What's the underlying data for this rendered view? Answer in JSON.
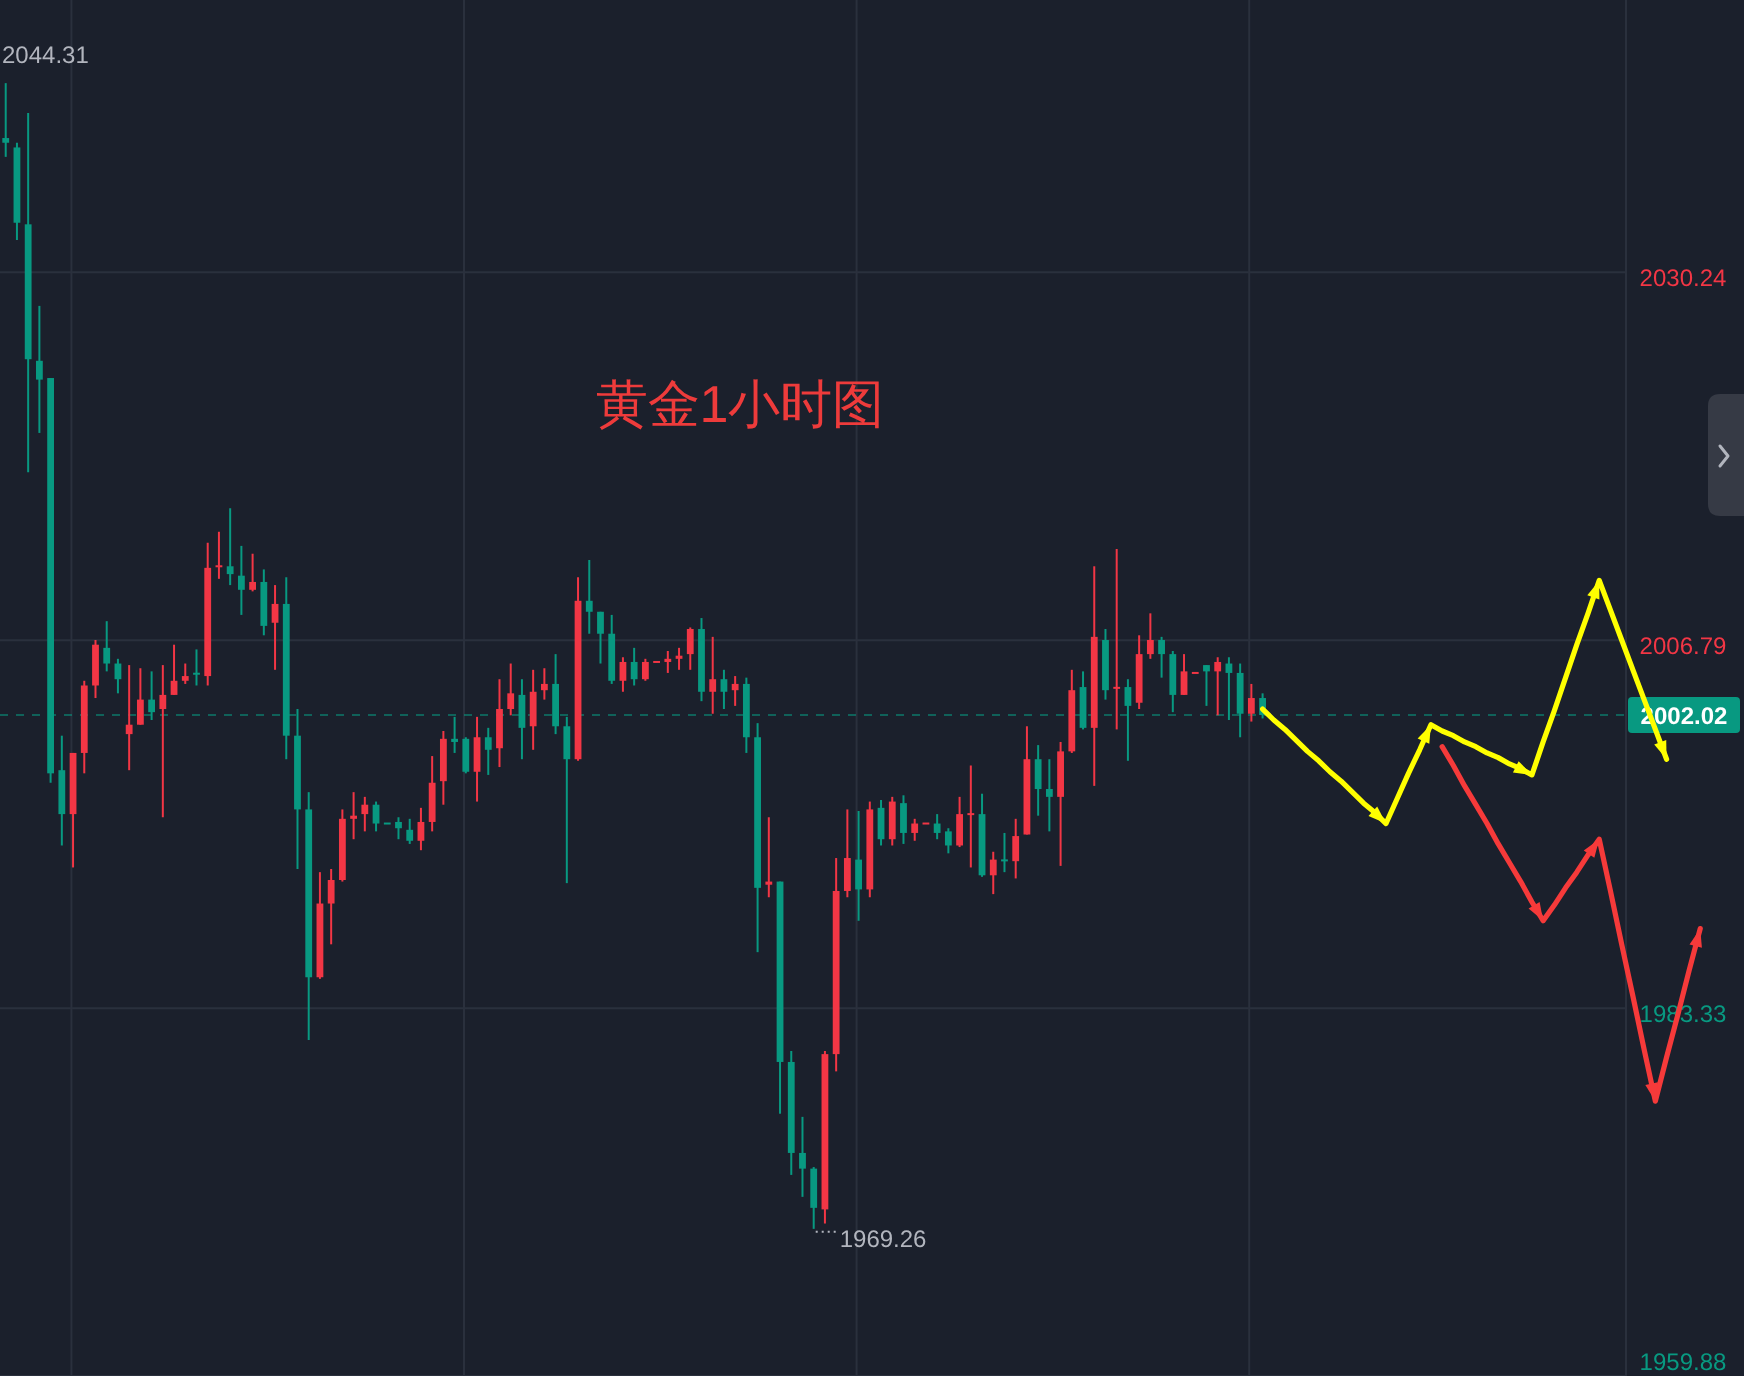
{
  "chart_data": {
    "type": "candlestick",
    "title": "黄金1小时图",
    "categories": [
      null,
      null,
      null,
      null,
      null,
      null,
      null,
      null,
      null,
      null,
      null,
      null,
      null,
      null,
      null,
      null,
      null,
      null,
      null,
      null,
      null,
      null,
      null,
      null,
      null,
      null,
      null,
      null,
      null,
      null,
      null,
      null,
      null,
      null,
      null,
      null,
      null,
      null,
      null,
      null,
      null,
      null,
      null,
      null,
      null,
      null,
      null,
      null,
      null,
      null,
      null,
      null,
      null,
      null,
      null,
      null,
      null,
      null,
      null,
      null,
      null,
      null,
      null,
      null,
      null,
      null,
      null,
      null,
      null,
      null,
      null,
      null,
      null,
      null,
      null,
      null,
      null,
      null,
      null,
      null,
      null,
      null,
      null,
      null,
      null,
      null,
      null,
      null,
      null,
      null,
      null,
      null,
      null,
      null,
      null,
      null,
      null,
      null,
      null,
      null,
      null,
      null,
      null,
      null,
      null,
      null,
      null,
      null,
      null,
      null,
      null,
      null,
      null,
      null,
      null,
      null,
      null,
      null,
      null,
      null,
      null,
      null,
      null,
      null,
      null,
      null,
      null,
      null,
      null,
      null,
      null,
      null,
      null,
      null,
      null,
      null,
      null,
      null,
      null,
      null,
      null,
      null,
      null,
      null,
      null,
      null,
      null,
      null,
      null,
      null,
      null,
      null
    ],
    "ohlc": [
      [
        2038.8,
        2042.3,
        2037.6,
        2038.5
      ],
      [
        2038.2,
        2038.5,
        2032.3,
        2033.4
      ],
      [
        2033.3,
        2040.4,
        2017.5,
        2024.7
      ],
      [
        2024.6,
        2028.1,
        2020.0,
        2023.4
      ],
      [
        2023.5,
        2023.5,
        1997.7,
        1998.3
      ],
      [
        1998.5,
        2000.7,
        1993.7,
        1995.7
      ],
      [
        1995.7,
        1999.6,
        1992.3,
        1999.6
      ],
      [
        1999.6,
        2004.2,
        1998.3,
        2003.9
      ],
      [
        2003.9,
        2006.8,
        2003.1,
        2006.5
      ],
      [
        2006.3,
        2008.0,
        2004.8,
        2005.3
      ],
      [
        2005.3,
        2005.6,
        2003.4,
        2004.3
      ],
      [
        2000.8,
        2005.2,
        1998.5,
        2001.4
      ],
      [
        2001.4,
        2005.0,
        2001.4,
        2003.0
      ],
      [
        2003.0,
        2004.8,
        2001.7,
        2002.2
      ],
      [
        2002.4,
        2005.2,
        1995.5,
        2003.3
      ],
      [
        2003.3,
        2006.5,
        2003.3,
        2004.2
      ],
      [
        2004.2,
        2005.3,
        2004.0,
        2004.5
      ],
      [
        2004.7,
        2006.2,
        2003.9,
        2004.6
      ],
      [
        2004.5,
        2013.0,
        2003.9,
        2011.4
      ],
      [
        2011.5,
        2013.7,
        2010.7,
        2011.5
      ],
      [
        2011.5,
        2015.2,
        2010.3,
        2011.0
      ],
      [
        2010.9,
        2012.8,
        2008.4,
        2010.0
      ],
      [
        2010.0,
        2012.3,
        2009.9,
        2010.5
      ],
      [
        2010.5,
        2011.3,
        2007.1,
        2007.7
      ],
      [
        2007.9,
        2010.3,
        2004.9,
        2009.1
      ],
      [
        2009.1,
        2010.8,
        1999.2,
        2000.7
      ],
      [
        2000.7,
        2002.4,
        1992.2,
        1996.0
      ],
      [
        1996.0,
        1997.1,
        1981.3,
        1985.3
      ],
      [
        1985.3,
        1992.0,
        1985.2,
        1990.0
      ],
      [
        1990.0,
        1992.2,
        1987.4,
        1991.5
      ],
      [
        1991.5,
        1996.0,
        1991.4,
        1995.4
      ],
      [
        1995.4,
        1997.1,
        1994.1,
        1995.6
      ],
      [
        1995.7,
        1996.8,
        1994.6,
        1996.3
      ],
      [
        1996.3,
        1996.5,
        1994.6,
        1995.1
      ],
      [
        1995.1,
        1995.1,
        1995.1,
        1995.1
      ],
      [
        1995.2,
        1995.5,
        1994.1,
        1994.8
      ],
      [
        1994.7,
        1995.4,
        1993.8,
        1994.0
      ],
      [
        1994.0,
        1996.1,
        1993.4,
        1995.2
      ],
      [
        1995.2,
        1999.4,
        1994.6,
        1997.7
      ],
      [
        1997.8,
        2001.0,
        1996.3,
        2000.5
      ],
      [
        2000.5,
        2001.9,
        1999.6,
        2000.3
      ],
      [
        2000.5,
        2000.6,
        1998.3,
        1998.4
      ],
      [
        1998.4,
        2001.9,
        1996.5,
        2000.6
      ],
      [
        2000.6,
        2001.2,
        1998.2,
        1999.8
      ],
      [
        1999.9,
        2004.3,
        1998.7,
        2002.4
      ],
      [
        2002.4,
        2005.3,
        2002.0,
        2003.4
      ],
      [
        2003.3,
        2004.3,
        1999.2,
        2001.2
      ],
      [
        2001.3,
        2004.9,
        1999.8,
        2003.5
      ],
      [
        2003.6,
        2005.0,
        2003.0,
        2004.0
      ],
      [
        2004.0,
        2005.9,
        2000.8,
        2001.3
      ],
      [
        2001.3,
        2001.9,
        1991.3,
        1999.2
      ],
      [
        1999.2,
        2010.8,
        1999.1,
        2009.3
      ],
      [
        2009.3,
        2011.9,
        2007.2,
        2008.6
      ],
      [
        2008.6,
        2008.6,
        2005.3,
        2007.2
      ],
      [
        2007.2,
        2008.4,
        2004.0,
        2004.2
      ],
      [
        2004.2,
        2005.7,
        2003.5,
        2005.4
      ],
      [
        2005.4,
        2006.3,
        2003.9,
        2004.3
      ],
      [
        2004.3,
        2005.6,
        2004.2,
        2005.4
      ],
      [
        2005.4,
        2005.4,
        2005.4,
        2005.4
      ],
      [
        2005.4,
        2006.1,
        2004.7,
        2005.6
      ],
      [
        2005.6,
        2006.3,
        2004.9,
        2005.8
      ],
      [
        2005.9,
        2007.6,
        2004.9,
        2007.5
      ],
      [
        2007.5,
        2008.2,
        2002.9,
        2003.5
      ],
      [
        2003.5,
        2007.0,
        2002.1,
        2004.3
      ],
      [
        2004.3,
        2004.9,
        2002.4,
        2003.5
      ],
      [
        2003.6,
        2004.5,
        2002.6,
        2004.0
      ],
      [
        2004.0,
        2004.4,
        1999.6,
        2000.6
      ],
      [
        2000.6,
        2001.5,
        1986.9,
        1991.0
      ],
      [
        1991.2,
        1995.5,
        1990.4,
        1991.4
      ],
      [
        1991.4,
        1991.4,
        1976.6,
        1979.9
      ],
      [
        1979.9,
        1980.6,
        1972.7,
        1974.1
      ],
      [
        1974.1,
        1976.4,
        1971.3,
        1973.1
      ],
      [
        1973.1,
        1973.2,
        1969.26,
        1970.6
      ],
      [
        1970.5,
        1980.6,
        1969.6,
        1980.4
      ],
      [
        1980.4,
        1992.9,
        1979.3,
        1990.8
      ],
      [
        1990.8,
        1996.0,
        1990.4,
        1992.9
      ],
      [
        1992.8,
        1995.9,
        1988.9,
        1990.9
      ],
      [
        1990.9,
        1996.5,
        1990.4,
        1996.0
      ],
      [
        1996.1,
        1996.6,
        1993.7,
        1994.1
      ],
      [
        1994.1,
        1996.8,
        1993.7,
        1996.5
      ],
      [
        1996.4,
        1996.9,
        1993.8,
        1994.5
      ],
      [
        1994.5,
        1995.4,
        1994.0,
        1995.1
      ],
      [
        1995.1,
        1995.1,
        1995.1,
        1995.1
      ],
      [
        1995.1,
        1995.7,
        1994.1,
        1994.5
      ],
      [
        1994.6,
        1994.8,
        1993.2,
        1993.7
      ],
      [
        1993.7,
        1996.8,
        1993.6,
        1995.7
      ],
      [
        1995.7,
        1998.8,
        1992.3,
        1995.7
      ],
      [
        1995.7,
        1997.0,
        1991.7,
        1991.8
      ],
      [
        1991.8,
        1993.3,
        1990.6,
        1992.8
      ],
      [
        1992.8,
        1994.5,
        1992.0,
        1992.7
      ],
      [
        1992.7,
        1995.4,
        1991.6,
        1994.3
      ],
      [
        1994.4,
        2001.3,
        1994.4,
        1999.2
      ],
      [
        1999.2,
        2000.1,
        1995.6,
        1997.3
      ],
      [
        1997.3,
        1999.2,
        1994.6,
        1996.8
      ],
      [
        1996.8,
        2000.3,
        1992.4,
        1999.7
      ],
      [
        1999.7,
        2004.9,
        1999.6,
        2003.6
      ],
      [
        2003.8,
        2004.8,
        2001.1,
        2001.2
      ],
      [
        2001.2,
        2011.5,
        1997.5,
        2007.0
      ],
      [
        2006.8,
        2007.5,
        2003.0,
        2003.6
      ],
      [
        2003.7,
        2012.6,
        2001.1,
        2003.8
      ],
      [
        2003.8,
        2004.3,
        1999.1,
        2002.6
      ],
      [
        2002.8,
        2007.1,
        2002.4,
        2005.9
      ],
      [
        2005.9,
        2008.5,
        2005.6,
        2006.8
      ],
      [
        2006.8,
        2007.0,
        2004.4,
        2005.9
      ],
      [
        2005.9,
        2006.1,
        2002.2,
        2003.3
      ],
      [
        2003.3,
        2005.9,
        2003.3,
        2004.8
      ],
      [
        2004.7,
        2004.7,
        2004.7,
        2004.7
      ],
      [
        2005.2,
        2005.2,
        2002.6,
        2004.8
      ],
      [
        2004.8,
        2005.7,
        2002.0,
        2005.4
      ],
      [
        2005.3,
        2005.7,
        2001.7,
        2004.7
      ],
      [
        2004.7,
        2005.3,
        2000.6,
        2002.1
      ],
      [
        2002.1,
        2004.0,
        2001.6,
        2003.1
      ],
      [
        2003.1,
        2003.4,
        2001.8,
        2002.02
      ],
      null,
      null,
      null,
      null,
      null,
      null,
      null,
      null,
      null,
      null,
      null,
      null,
      null,
      null,
      null,
      null,
      null,
      null,
      null,
      null,
      null,
      null,
      null,
      null,
      null,
      null,
      null,
      null,
      null,
      null,
      null,
      null,
      null,
      null,
      null,
      null,
      null,
      null,
      null
    ],
    "colors": [
      "#089981",
      "#089981",
      "#089981",
      "#089981",
      "#089981",
      "#089981",
      "#f23645",
      "#f23645",
      "#f23645",
      "#089981",
      "#089981",
      "#f23645",
      "#f23645",
      "#089981",
      "#f23645",
      "#f23645",
      "#f23645",
      "#089981",
      "#f23645",
      "#f23645",
      "#089981",
      "#089981",
      "#f23645",
      "#089981",
      "#f23645",
      "#089981",
      "#089981",
      "#089981",
      "#f23645",
      "#f23645",
      "#f23645",
      "#f23645",
      "#f23645",
      "#089981",
      "#089981",
      "#089981",
      "#089981",
      "#f23645",
      "#f23645",
      "#f23645",
      "#089981",
      "#089981",
      "#f23645",
      "#089981",
      "#f23645",
      "#f23645",
      "#089981",
      "#f23645",
      "#f23645",
      "#089981",
      "#089981",
      "#f23645",
      "#089981",
      "#089981",
      "#089981",
      "#f23645",
      "#089981",
      "#f23645",
      "#f23645",
      "#f23645",
      "#f23645",
      "#f23645",
      "#089981",
      "#f23645",
      "#089981",
      "#f23645",
      "#089981",
      "#089981",
      "#f23645",
      "#089981",
      "#089981",
      "#089981",
      "#089981",
      "#f23645",
      "#f23645",
      "#f23645",
      "#089981",
      "#f23645",
      "#089981",
      "#f23645",
      "#089981",
      "#f23645",
      "#f23645",
      "#089981",
      "#089981",
      "#f23645",
      "#f23645",
      "#089981",
      "#f23645",
      "#089981",
      "#f23645",
      "#f23645",
      "#089981",
      "#089981",
      "#f23645",
      "#f23645",
      "#089981",
      "#f23645",
      "#089981",
      "#f23645",
      "#089981",
      "#f23645",
      "#f23645",
      "#089981",
      "#089981",
      "#f23645",
      "#f23645",
      "#089981",
      "#f23645",
      "#089981",
      "#089981",
      "#f23645",
      "#089981",
      null,
      null,
      null,
      null,
      null,
      null,
      null,
      null,
      null,
      null,
      null,
      null,
      null,
      null,
      null,
      null,
      null,
      null,
      null,
      null,
      null,
      null,
      null,
      null,
      null,
      null,
      null,
      null,
      null,
      null,
      null,
      null,
      null,
      null,
      null,
      null,
      null,
      null,
      null
    ],
    "series": [
      {
        "type": "line",
        "color": "#ffff00",
        "values": [
          null,
          null,
          null,
          null,
          null,
          null,
          null,
          null,
          null,
          null,
          null,
          null,
          null,
          null,
          null,
          null,
          null,
          null,
          null,
          null,
          null,
          null,
          null,
          null,
          null,
          null,
          null,
          null,
          null,
          null,
          null,
          null,
          null,
          null,
          null,
          null,
          null,
          null,
          null,
          null,
          null,
          null,
          null,
          null,
          null,
          null,
          null,
          null,
          null,
          null,
          null,
          null,
          null,
          null,
          null,
          null,
          null,
          null,
          null,
          null,
          null,
          null,
          null,
          null,
          null,
          null,
          null,
          null,
          null,
          null,
          null,
          null,
          null,
          null,
          null,
          null,
          null,
          null,
          null,
          null,
          null,
          null,
          null,
          null,
          null,
          null,
          null,
          null,
          null,
          null,
          null,
          null,
          null,
          null,
          null,
          null,
          null,
          null,
          null,
          null,
          null,
          null,
          null,
          null,
          null,
          null,
          null,
          null,
          null,
          null,
          null,
          null,
          2002.4,
          2001.7,
          2001.1,
          2000.4,
          1999.7,
          1999.1,
          1998.4,
          1997.8,
          1997.1,
          1996.4,
          1995.8,
          1995.1,
          1996.7,
          1998.3,
          1999.8,
          2001.4,
          2001.0,
          2000.7,
          2000.3,
          2000.0,
          1999.6,
          1999.3,
          1998.9,
          1998.6,
          1998.2,
          2000.3,
          2002.3,
          2004.4,
          2006.5,
          2008.5,
          2010.6,
          2008.7,
          2006.8,
          2004.9,
          2003.0,
          2001.1,
          1999.2,
          null,
          null,
          null
        ]
      },
      {
        "type": "line",
        "color": "#f63a3a",
        "values": [
          null,
          null,
          null,
          null,
          null,
          null,
          null,
          null,
          null,
          null,
          null,
          null,
          null,
          null,
          null,
          null,
          null,
          null,
          null,
          null,
          null,
          null,
          null,
          null,
          null,
          null,
          null,
          null,
          null,
          null,
          null,
          null,
          null,
          null,
          null,
          null,
          null,
          null,
          null,
          null,
          null,
          null,
          null,
          null,
          null,
          null,
          null,
          null,
          null,
          null,
          null,
          null,
          null,
          null,
          null,
          null,
          null,
          null,
          null,
          null,
          null,
          null,
          null,
          null,
          null,
          null,
          null,
          null,
          null,
          null,
          null,
          null,
          null,
          null,
          null,
          null,
          null,
          null,
          null,
          null,
          null,
          null,
          null,
          null,
          null,
          null,
          null,
          null,
          null,
          null,
          null,
          null,
          null,
          null,
          null,
          null,
          null,
          null,
          null,
          null,
          null,
          null,
          null,
          null,
          null,
          null,
          null,
          null,
          null,
          null,
          null,
          null,
          null,
          null,
          null,
          null,
          null,
          null,
          null,
          null,
          null,
          null,
          null,
          null,
          null,
          null,
          null,
          null,
          2000.0,
          1998.8,
          1997.5,
          1996.3,
          1995.1,
          1993.8,
          1992.6,
          1991.4,
          1990.1,
          1988.9,
          1989.9,
          1991.0,
          1992.0,
          1993.1,
          1994.1,
          1990.8,
          1987.4,
          1984.1,
          1980.7,
          1977.4,
          1980.2,
          1982.9,
          1985.7,
          1988.4
        ]
      }
    ],
    "ylim": [
      1959.88,
      2047.6
    ],
    "yticks": [
      2030.24,
      2006.79,
      1983.33,
      1959.88
    ],
    "grid": true,
    "ref_lines": [
      {
        "axis": "y",
        "value": 2002.02,
        "label": "2002.02",
        "color": "#089981",
        "line_style": "dashed"
      }
    ],
    "annotations": [
      "2044.31",
      "1969.26"
    ]
  }
}
